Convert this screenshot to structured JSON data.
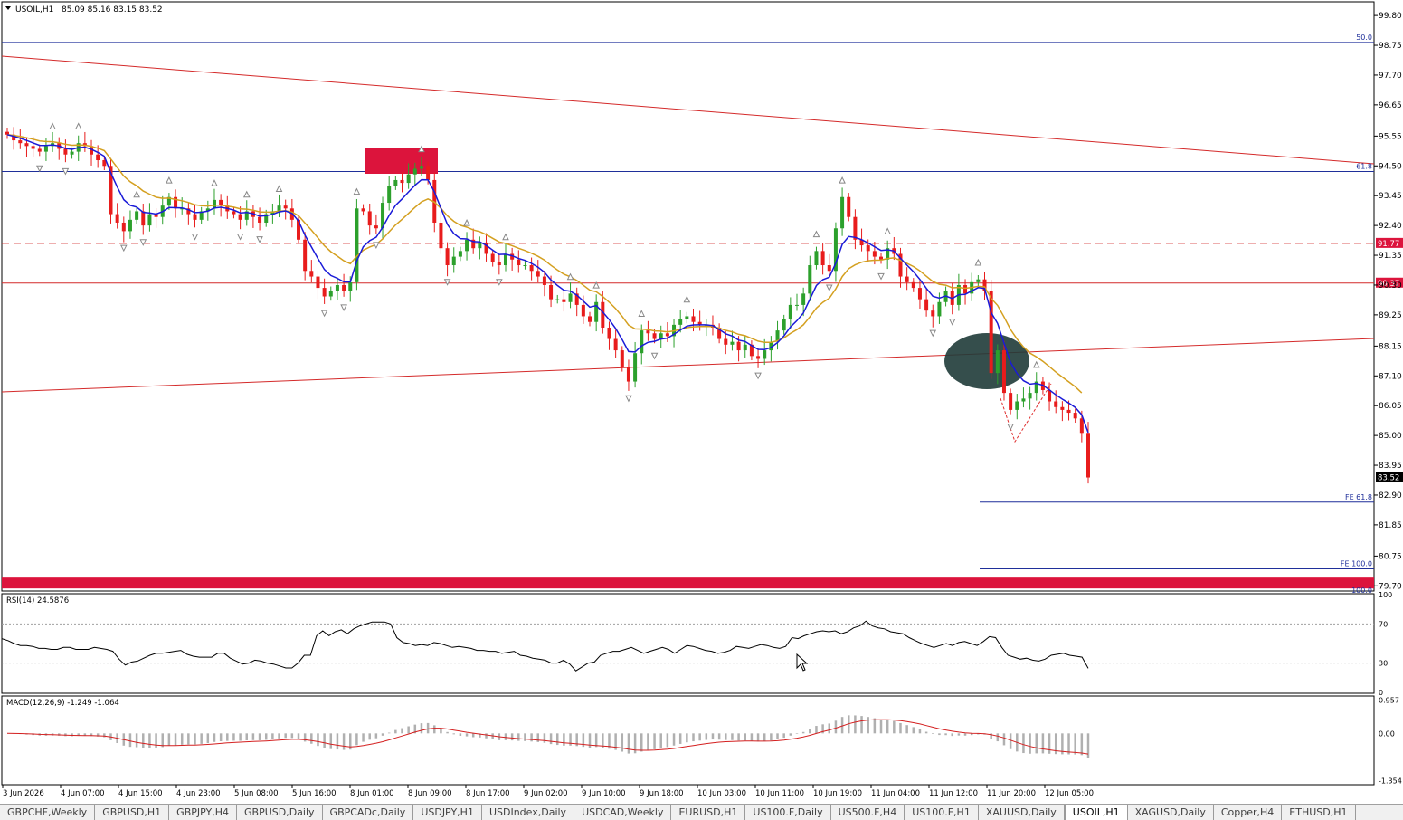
{
  "header": {
    "symbol": "USOIL,H1",
    "ohlc": "85.09 85.16 83.15 83.52"
  },
  "price_axis": {
    "ticks": [
      "99.80",
      "98.75",
      "97.70",
      "96.65",
      "95.55",
      "94.50",
      "93.45",
      "92.40",
      "91.35",
      "90.30",
      "89.25",
      "88.15",
      "87.10",
      "86.05",
      "85.00",
      "83.95",
      "82.90",
      "81.85",
      "80.75",
      "79.70"
    ],
    "range": [
      79.55,
      100.25
    ],
    "current_price": "83.52",
    "level_91": "91.77",
    "level_90": "90.37"
  },
  "fib_labels": {
    "fib_50": "50.0",
    "fib_618": "61.8",
    "fib_100": "100.0",
    "fe_618": "FE 61.8",
    "fe_100": "FE 100.0"
  },
  "fib_levels": {
    "fib_50": 98.85,
    "fib_618": 94.3,
    "fib_100": 79.8,
    "fe_618": 82.65,
    "fe_100": 80.3
  },
  "rsi": {
    "label": "RSI(14) 24.5876",
    "range": [
      0,
      100
    ],
    "ticks": [
      "100",
      "70",
      "30",
      "0"
    ],
    "levels": [
      70,
      30
    ],
    "values": [
      55,
      53,
      50,
      48,
      48,
      47,
      45,
      45,
      44,
      44,
      46,
      46,
      44,
      44,
      44,
      46,
      45,
      44,
      42,
      34,
      28,
      31,
      32,
      35,
      38,
      40,
      40,
      41,
      42,
      43,
      39,
      37,
      36,
      36,
      36,
      40,
      40,
      35,
      32,
      29,
      30,
      33,
      32,
      30,
      29,
      27,
      25,
      25,
      30,
      38,
      38,
      58,
      63,
      58,
      62,
      64,
      60,
      65,
      68,
      70,
      72,
      72,
      72,
      70,
      56,
      51,
      50,
      48,
      49,
      48,
      51,
      50,
      48,
      46,
      47,
      46,
      45,
      43,
      43,
      42,
      42,
      40,
      41,
      42,
      38,
      37,
      35,
      34,
      33,
      30,
      30,
      33,
      29,
      22,
      26,
      30,
      31,
      38,
      40,
      42,
      42,
      44,
      46,
      43,
      40,
      42,
      44,
      46,
      44,
      40,
      44,
      48,
      47,
      45,
      43,
      42,
      40,
      41,
      43,
      47,
      46,
      45,
      47,
      49,
      48,
      46,
      45,
      47,
      56,
      55,
      58,
      60,
      62,
      63,
      62,
      63,
      60,
      62,
      66,
      68,
      73,
      68,
      66,
      65,
      62,
      61,
      60,
      56,
      53,
      50,
      48,
      46,
      48,
      50,
      48,
      51,
      52,
      50,
      48,
      52,
      57,
      56,
      46,
      38,
      36,
      34,
      35,
      33,
      32,
      34,
      38,
      39,
      40,
      38,
      37,
      36,
      24.5876
    ]
  },
  "macd": {
    "label": "MACD(12,26,9) -1.249 -1.064",
    "range": [
      -1.45,
      1.05
    ],
    "ticks": [
      "0.957",
      "0.00",
      "-1.354"
    ]
  },
  "time_axis": [
    "3 Jun 2026",
    "4 Jun 07:00",
    "4 Jun 15:00",
    "4 Jun 23:00",
    "5 Jun 08:00",
    "5 Jun 16:00",
    "8 Jun 01:00",
    "8 Jun 09:00",
    "8 Jun 17:00",
    "9 Jun 02:00",
    "9 Jun 10:00",
    "9 Jun 18:00",
    "10 Jun 03:00",
    "10 Jun 11:00",
    "10 Jun 19:00",
    "11 Jun 04:00",
    "11 Jun 12:00",
    "11 Jun 20:00",
    "12 Jun 05:00"
  ],
  "tabs": [
    "GBPCHF,Weekly",
    "GBPUSD,H1",
    "GBPJPY,H4",
    "GBPUSD,Daily",
    "GBPCADc,Daily",
    "USDJPY,H1",
    "USDIndex,Daily",
    "USDCAD,Weekly",
    "EURUSD,H1",
    "US100.F,Daily",
    "US500.F,H4",
    "US100.F,H1",
    "XAUUSD,Daily",
    "USOIL,H1",
    "XAGUSD,Daily",
    "Copper,H4",
    "ETHUSD,H1"
  ],
  "active_tab": "USOIL,H1",
  "chart_data": {
    "type": "candlestick",
    "symbol": "USOIL",
    "timeframe": "H1",
    "closes": [
      95.6,
      95.4,
      95.3,
      95.2,
      95.1,
      95.0,
      95.2,
      95.3,
      95.1,
      94.9,
      95.0,
      95.3,
      95.2,
      94.9,
      94.7,
      94.5,
      92.8,
      92.5,
      92.2,
      92.6,
      92.9,
      92.4,
      92.8,
      92.7,
      93.1,
      93.4,
      93.0,
      93.0,
      92.8,
      92.6,
      92.9,
      93.0,
      93.3,
      93.1,
      92.9,
      92.8,
      92.6,
      92.9,
      92.7,
      92.5,
      92.8,
      92.9,
      93.1,
      93.0,
      92.6,
      91.9,
      90.8,
      90.6,
      90.2,
      89.9,
      90.1,
      90.3,
      90.1,
      90.4,
      93.0,
      92.9,
      92.4,
      92.3,
      93.2,
      93.8,
      94.0,
      93.9,
      94.2,
      94.4,
      94.5,
      94.0,
      92.5,
      91.6,
      91.0,
      91.3,
      91.5,
      91.9,
      91.6,
      91.8,
      91.4,
      91.1,
      91.0,
      91.4,
      91.2,
      91.0,
      91.0,
      90.8,
      90.6,
      90.3,
      89.8,
      89.8,
      89.7,
      90.0,
      89.6,
      89.2,
      89.0,
      89.7,
      88.8,
      88.4,
      88.0,
      87.4,
      86.9,
      87.9,
      88.7,
      88.6,
      88.4,
      88.6,
      88.5,
      88.9,
      89.1,
      89.2,
      89.0,
      88.9,
      88.9,
      88.8,
      88.4,
      88.2,
      88.3,
      88.0,
      88.2,
      87.8,
      87.7,
      88.0,
      88.3,
      88.7,
      89.1,
      89.6,
      89.6,
      90.0,
      91.0,
      91.5,
      91.0,
      90.8,
      92.3,
      93.4,
      92.7,
      91.9,
      91.7,
      91.5,
      91.3,
      91.2,
      91.6,
      91.4,
      90.6,
      90.4,
      90.2,
      89.8,
      89.4,
      89.2,
      89.7,
      90.1,
      89.6,
      90.3,
      90.0,
      90.4,
      90.5,
      90.1,
      87.2,
      88.0,
      86.5,
      85.9,
      86.2,
      86.3,
      86.5,
      86.9,
      86.6,
      86.2,
      86.0,
      85.9,
      85.8,
      85.6,
      85.09,
      83.52
    ]
  }
}
